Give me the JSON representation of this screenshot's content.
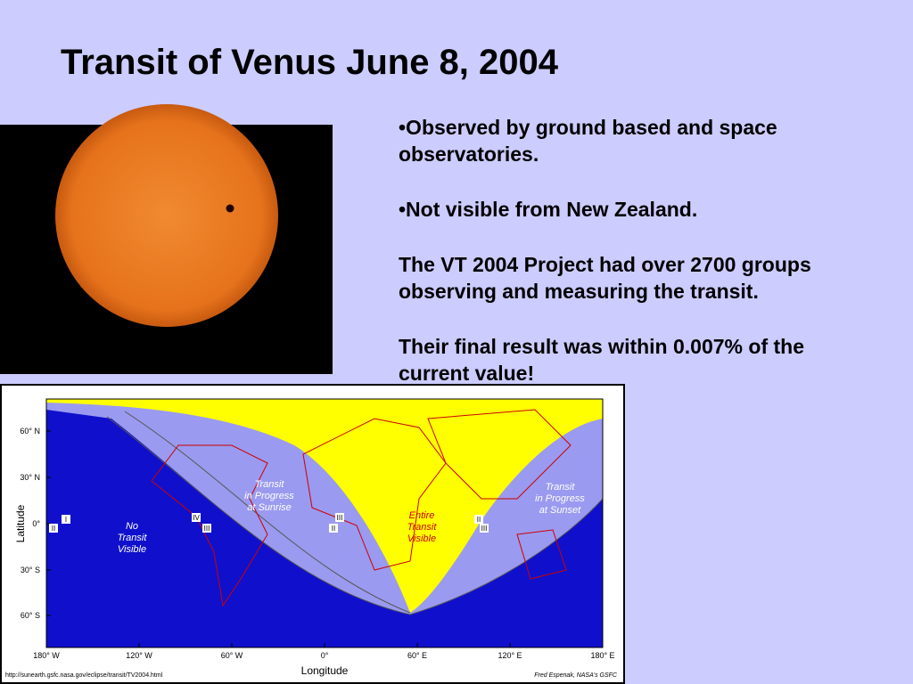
{
  "title": "Transit of Venus June 8, 2004",
  "paragraphs": [
    "•Observed by ground based and space observatories.",
    "•Not visible from New Zealand.",
    "The VT 2004 Project had over 2700 groups observing and measuring the transit.",
    "Their final result was within 0.007% of the current value!"
  ],
  "map": {
    "lat_ticks": [
      "60° N",
      "30° N",
      "0°",
      "30° S",
      "60° S"
    ],
    "lon_ticks": [
      "180° W",
      "120° W",
      "60° W",
      "0°",
      "60° E",
      "120° E",
      "180° E"
    ],
    "y_label": "Latitude",
    "x_label": "Longitude",
    "regions": [
      {
        "lines": [
          "No",
          "Transit",
          "Visible"
        ]
      },
      {
        "lines": [
          "Transit",
          "in Progress",
          "at Sunrise"
        ]
      },
      {
        "lines": [
          "Entire",
          "Transit",
          "Visible"
        ]
      },
      {
        "lines": [
          "Transit",
          "in Progress",
          "at Sunset"
        ]
      }
    ],
    "contacts": [
      "I",
      "II",
      "IV",
      "III",
      "III",
      "II",
      "II",
      "III"
    ],
    "url": "http://sunearth.gsfc.nasa.gov/eclipse/transit/TV2004.html",
    "credit": "Fred Espenak, NASA's GSFC"
  }
}
